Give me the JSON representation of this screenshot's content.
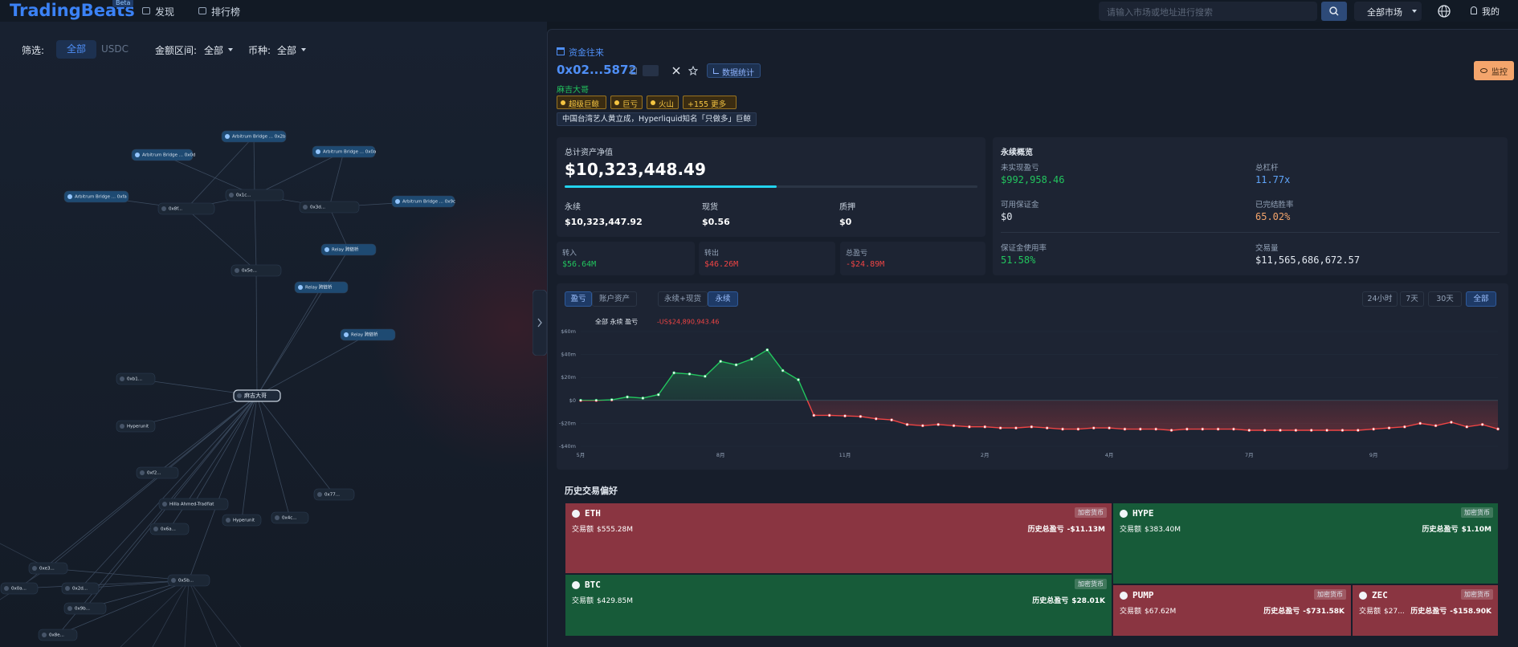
{
  "nav": {
    "logo": "TradingBeats",
    "badge": "Beta",
    "links": [
      "发现",
      "排行榜"
    ],
    "search_placeholder": "请输入市场或地址进行搜索",
    "market": "全部市场",
    "account": "我的"
  },
  "filters": {
    "label": "筛选:",
    "options": [
      "全部",
      "USDC"
    ],
    "amount_label": "金额区间:",
    "amount_value": "全部",
    "coin_label": "币种:",
    "coin_value": "全部"
  },
  "graph": {
    "nodes": [
      {
        "label": "Arbitrum Bridge ... 0x2b"
      },
      {
        "label": "Arbitrum Bridge ... 0x0d"
      },
      {
        "label": "Arbitrum Bridge ... 0x0a"
      },
      {
        "label": "Arbitrum Bridge ... 0xfa"
      },
      {
        "label": "0x8f..."
      },
      {
        "label": "0x1c..."
      },
      {
        "label": "0x3d..."
      },
      {
        "label": "Arbitrum Bridge ... 0x9c"
      },
      {
        "label": "Relay 跨链桥"
      },
      {
        "label": "Relay 跨链桥"
      },
      {
        "label": "Relay 跨链桥"
      },
      {
        "label": "0x5e..."
      },
      {
        "label": "麻吉大哥"
      },
      {
        "label": "0xb1..."
      },
      {
        "label": "Hyperunit"
      },
      {
        "label": "0xf2..."
      },
      {
        "label": "Hilla Ahmed-Tradfiat"
      },
      {
        "label": "0x6a..."
      },
      {
        "label": "Hyperunit"
      },
      {
        "label": "0x4c..."
      },
      {
        "label": "0x77..."
      },
      {
        "label": "0xe3..."
      },
      {
        "label": "0x0a..."
      },
      {
        "label": "0x9b..."
      },
      {
        "label": "0x2d..."
      },
      {
        "label": "0x5b..."
      },
      {
        "label": "0x8e..."
      }
    ]
  },
  "profile": {
    "section": "资金往来",
    "address": "0x02...5872",
    "stats_button": "数据统计",
    "nickname": "麻吉大哥",
    "tags": [
      "超级巨鲸",
      "巨亏",
      "火山",
      "+155 更多"
    ],
    "description": "中国台湾艺人黄立成，Hyperliquid知名「只做多」巨鲸",
    "monitor": "监控"
  },
  "assets": {
    "title": "总计资产净值",
    "total": "$10,323,448.49",
    "items": [
      {
        "label": "永续",
        "value": "$10,323,447.92"
      },
      {
        "label": "现货",
        "value": "$0.56"
      },
      {
        "label": "质押",
        "value": "$0"
      }
    ]
  },
  "flows": [
    {
      "label": "转入",
      "value": "$56.64M"
    },
    {
      "label": "转出",
      "value": "$46.26M"
    },
    {
      "label": "总盈亏",
      "value": "-$24.89M"
    }
  ],
  "perp": {
    "title": "永续概览",
    "items": [
      {
        "label": "未实现盈亏",
        "value": "$992,958.46"
      },
      {
        "label": "总杠杆",
        "value": "11.77x"
      },
      {
        "label": "可用保证金",
        "value": "$0"
      },
      {
        "label": "已完结胜率",
        "value": "65.02%"
      },
      {
        "label": "保证金使用率",
        "value": "51.58%"
      },
      {
        "label": "交易量",
        "value": "$11,565,686,672.57"
      }
    ]
  },
  "chart_tabs": {
    "metric": [
      "盈亏",
      "账户资产"
    ],
    "scope": [
      "永续+现货",
      "永续"
    ],
    "range": [
      "24小时",
      "7天",
      "30天",
      "全部"
    ]
  },
  "chart_data": {
    "type": "line",
    "title": "全部 永续 盈亏",
    "total": "-US$24,890,943.46",
    "categories": [
      "5月",
      null,
      null,
      null,
      null,
      null,
      null,
      null,
      null,
      "8月",
      null,
      null,
      null,
      null,
      null,
      null,
      null,
      "11月",
      null,
      null,
      null,
      null,
      null,
      null,
      null,
      null,
      "2月",
      null,
      null,
      null,
      null,
      null,
      null,
      null,
      "4月",
      null,
      null,
      null,
      null,
      null,
      null,
      null,
      null,
      "7月",
      null,
      null,
      null,
      null,
      null,
      null,
      null,
      "9月",
      null,
      null,
      null,
      null,
      null,
      null,
      null,
      null
    ],
    "values": [
      0,
      0,
      0.5,
      3,
      2,
      5,
      24,
      23,
      21,
      34,
      31,
      36,
      44,
      26,
      18,
      -13,
      -13,
      -13.5,
      -14,
      -16,
      -17,
      -21,
      -22,
      -21,
      -22,
      -23,
      -23,
      -24,
      -24,
      -23,
      -24,
      -25,
      -25,
      -24,
      -24,
      -25,
      -25,
      -25,
      -26,
      -25,
      -25,
      -25,
      -25,
      -26,
      -26,
      -26,
      -26,
      -26,
      -26,
      -26,
      -26,
      -25,
      -24,
      -23,
      -20,
      -22,
      -19,
      -23,
      -21,
      -24.89
    ],
    "ylim": [
      -40,
      60
    ],
    "yticks": [
      {
        "value": 60,
        "label": "$60m"
      },
      {
        "value": 40,
        "label": "$40m"
      },
      {
        "value": 20,
        "label": "$20m"
      },
      {
        "value": 0,
        "label": "$0"
      },
      {
        "value": -20,
        "label": "-$20m"
      },
      {
        "value": -40,
        "label": "-$40m"
      }
    ],
    "grid": true,
    "up_color": "#22c55e",
    "down_color": "#ef4444"
  },
  "preferences": {
    "title": "历史交易偏好",
    "tiles": [
      {
        "symbol": "ETH",
        "tag": "加密货币",
        "volume_label": "交易额",
        "volume": "$555.28M",
        "pnl_label": "历史总盈亏",
        "pnl": "-$11.13M"
      },
      {
        "symbol": "BTC",
        "tag": "加密货币",
        "volume_label": "交易额",
        "volume": "$429.85M",
        "pnl_label": "历史总盈亏",
        "pnl": "$28.01K"
      },
      {
        "symbol": "HYPE",
        "tag": "加密货币",
        "volume_label": "交易额",
        "volume": "$383.40M",
        "pnl_label": "历史总盈亏",
        "pnl": "$1.10M"
      },
      {
        "symbol": "PUMP",
        "tag": "加密货币",
        "volume_label": "交易额",
        "volume": "$67.62M",
        "pnl_label": "历史总盈亏",
        "pnl": "-$731.58K"
      },
      {
        "symbol": "ZEC",
        "tag": "加密货币",
        "volume_label": "交易额",
        "volume": "$27...",
        "pnl_label": "历史总盈亏",
        "pnl": "-$158.90K"
      }
    ]
  }
}
